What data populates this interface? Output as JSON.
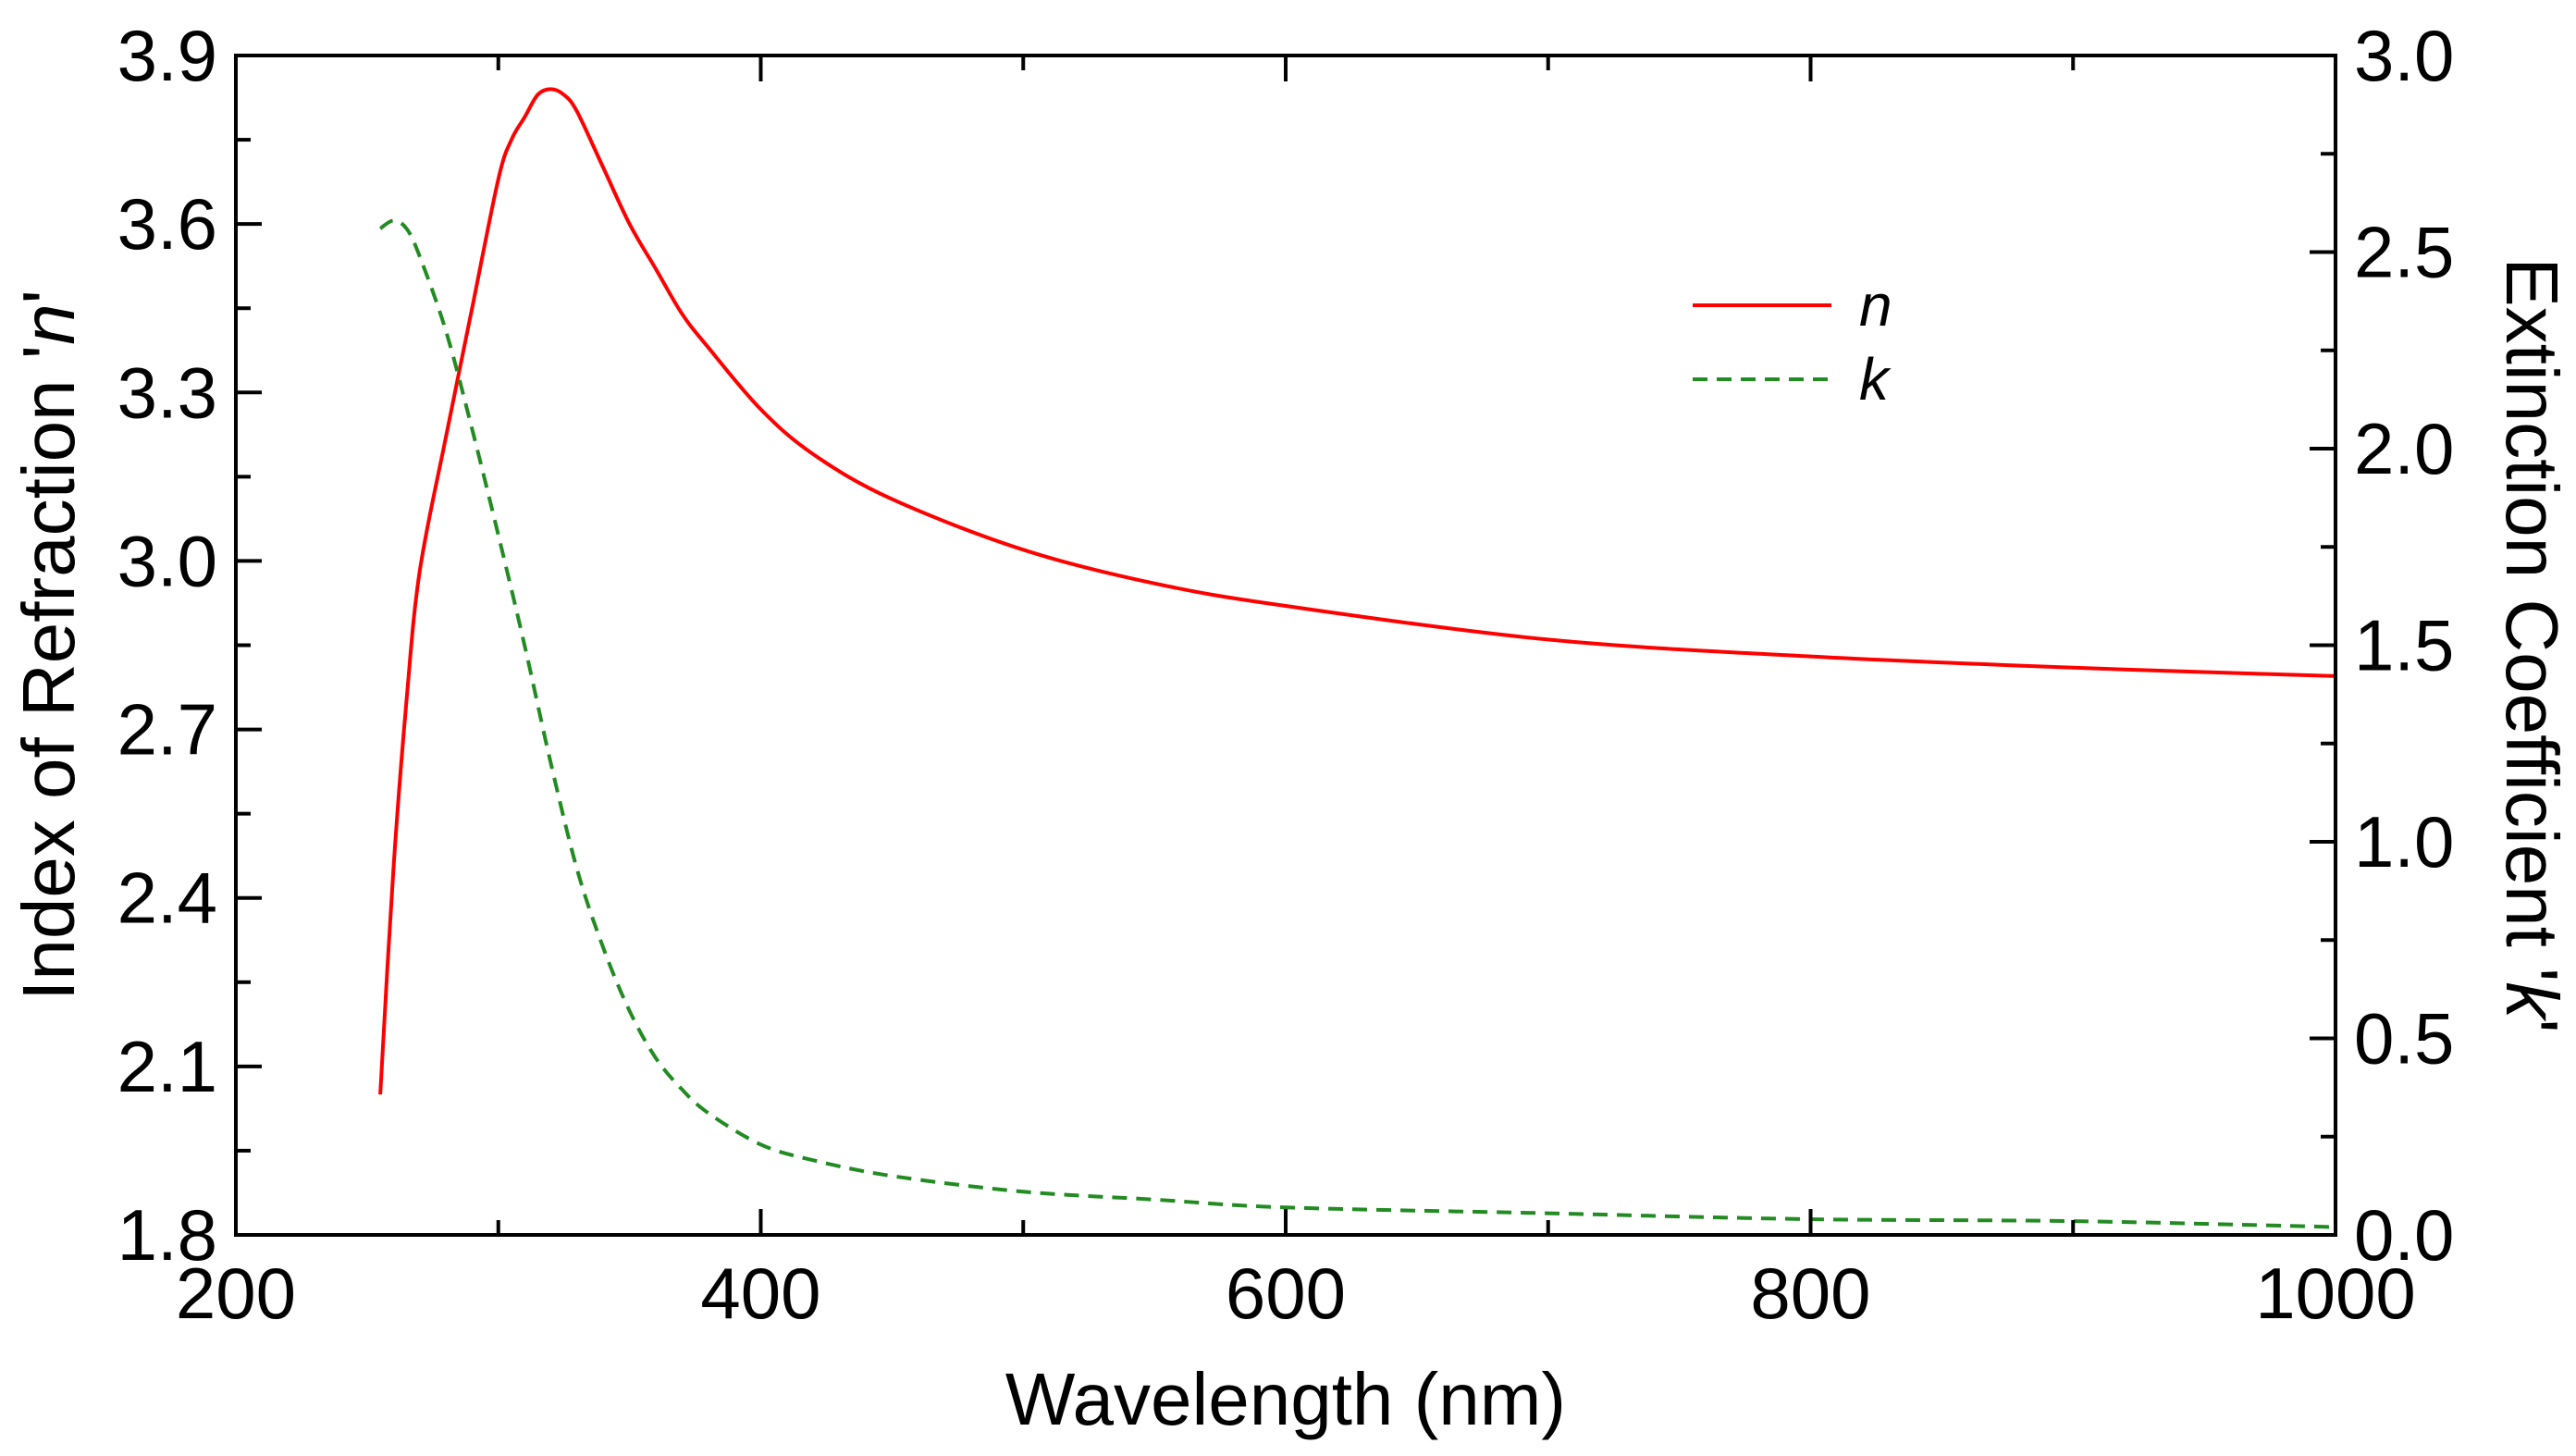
{
  "chart_data": {
    "type": "line",
    "title": "",
    "xlabel": "Wavelength (nm)",
    "ylabel_left": {
      "prefix": "Index of Refraction '",
      "symbol": "n",
      "suffix": "'"
    },
    "ylabel_right": {
      "prefix": "Extinction Coefficient '",
      "symbol": "k",
      "suffix": "'"
    },
    "xlim": [
      200,
      1000
    ],
    "ylim_left": [
      1.8,
      3.9
    ],
    "ylim_right": [
      0.0,
      3.0
    ],
    "x_ticks": [
      200,
      400,
      600,
      800,
      1000
    ],
    "x_tick_labels": [
      "200",
      "400",
      "600",
      "800",
      "1000"
    ],
    "y_left_ticks": [
      1.8,
      2.1,
      2.4,
      2.7,
      3.0,
      3.3,
      3.6,
      3.9
    ],
    "y_left_tick_labels": [
      "1.8",
      "2.1",
      "2.4",
      "2.7",
      "3.0",
      "3.3",
      "3.6",
      "3.9"
    ],
    "y_right_ticks": [
      0.0,
      0.5,
      1.0,
      1.5,
      2.0,
      2.5,
      3.0
    ],
    "y_right_tick_labels": [
      "0.0",
      "0.5",
      "1.0",
      "1.5",
      "2.0",
      "2.5",
      "3.0"
    ],
    "legend_position": "top-right",
    "series": [
      {
        "name": "n",
        "axis": "left",
        "color": "#ff0000",
        "dash": "solid",
        "x": [
          255,
          260,
          265,
          270,
          280,
          290,
          300,
          305,
          310,
          315,
          320,
          325,
          330,
          340,
          350,
          360,
          370,
          380,
          400,
          420,
          450,
          500,
          550,
          600,
          700,
          800,
          900,
          1000
        ],
        "y": [
          2.05,
          2.45,
          2.75,
          2.98,
          3.22,
          3.45,
          3.68,
          3.75,
          3.79,
          3.83,
          3.84,
          3.83,
          3.8,
          3.7,
          3.6,
          3.52,
          3.44,
          3.38,
          3.27,
          3.19,
          3.11,
          3.02,
          2.96,
          2.92,
          2.86,
          2.83,
          2.81,
          2.795
        ]
      },
      {
        "name": "k",
        "axis": "right",
        "color": "#228B22",
        "dash": "dashed",
        "x": [
          255,
          260,
          265,
          270,
          280,
          290,
          300,
          310,
          320,
          330,
          340,
          350,
          360,
          370,
          380,
          400,
          420,
          450,
          500,
          550,
          600,
          700,
          800,
          900,
          1000
        ],
        "y": [
          2.56,
          2.58,
          2.56,
          2.49,
          2.3,
          2.05,
          1.78,
          1.5,
          1.2,
          0.93,
          0.73,
          0.57,
          0.45,
          0.37,
          0.31,
          0.23,
          0.19,
          0.15,
          0.11,
          0.09,
          0.07,
          0.055,
          0.04,
          0.035,
          0.02
        ]
      }
    ]
  }
}
